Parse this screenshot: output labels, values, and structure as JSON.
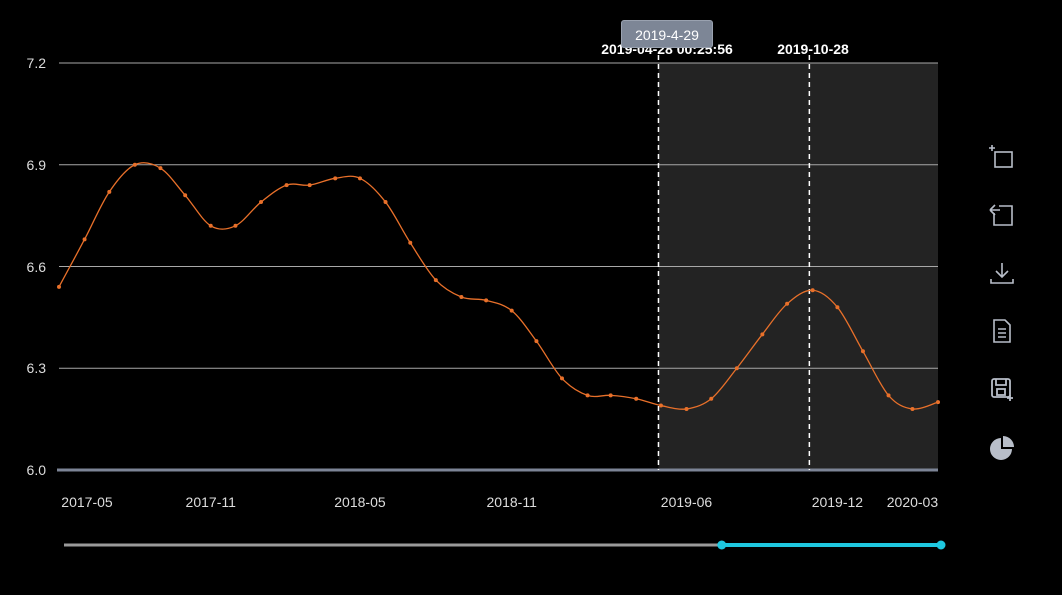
{
  "chart_data": {
    "type": "line",
    "xlabel": "",
    "ylabel": "",
    "ylim": [
      6.0,
      7.2
    ],
    "yticks": [
      "6.0",
      "6.3",
      "6.6",
      "6.9",
      "7.2"
    ],
    "x_tick_labels": [
      "2017-05",
      "2017-11",
      "2018-05",
      "2018-11",
      "2019-06",
      "2019-12",
      "2020-03"
    ],
    "series": [
      {
        "color": "#e8702a",
        "x": [
          "2017-05-01",
          "2017-06-01",
          "2017-07-01",
          "2017-08-01",
          "2017-09-01",
          "2017-10-01",
          "2017-11-01",
          "2017-12-01",
          "2018-01-01",
          "2018-02-01",
          "2018-03-01",
          "2018-04-01",
          "2018-05-01",
          "2018-06-01",
          "2018-07-01",
          "2018-08-01",
          "2018-09-01",
          "2018-10-01",
          "2018-11-01",
          "2018-12-01",
          "2019-01-01",
          "2019-02-01",
          "2019-03-01",
          "2019-04-01",
          "2019-05-01",
          "2019-06-01",
          "2019-07-01",
          "2019-08-01",
          "2019-09-01",
          "2019-10-01",
          "2019-11-01",
          "2019-12-01",
          "2020-01-01",
          "2020-02-01",
          "2020-03-01",
          "2020-04-01"
        ],
        "values": [
          6.54,
          6.68,
          6.82,
          6.9,
          6.89,
          6.81,
          6.72,
          6.72,
          6.79,
          6.84,
          6.84,
          6.86,
          6.86,
          6.79,
          6.67,
          6.56,
          6.51,
          6.5,
          6.47,
          6.38,
          6.27,
          6.22,
          6.22,
          6.21,
          6.19,
          6.18,
          6.21,
          6.3,
          6.4,
          6.49,
          6.53,
          6.48,
          6.35,
          6.22,
          6.18,
          6.2
        ]
      }
    ],
    "mark_area": {
      "start_label": "2019-04-28 00:25:56",
      "end_label": "2019-10-28",
      "start": "2019-04-28",
      "end": "2019-10-28",
      "tooltip": "2019-4-29"
    },
    "grid": true,
    "datazoom_range": [
      0.75,
      1.0
    ]
  },
  "toolbox": [
    "zoom-icon",
    "zoom-reset-icon",
    "download-icon",
    "data-view-icon",
    "save-image-icon",
    "pie-chart-icon"
  ],
  "colors": {
    "line": "#e8702a",
    "highlight": "#1ec8e0",
    "mark_area": "#232323",
    "grid": "#aaaaaa"
  }
}
